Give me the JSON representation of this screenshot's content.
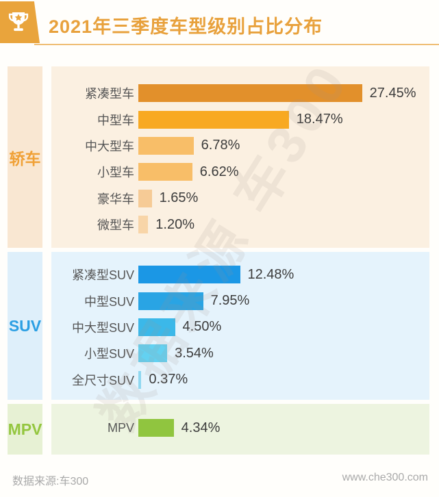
{
  "header": {
    "title": "2021年三季度车型级别占比分布",
    "icon": "trophy-icon",
    "accent_color": "#e8a13c"
  },
  "watermark": "数据来源 车300",
  "footer": {
    "source": "数据来源:车300",
    "website": "www.che300.com"
  },
  "chart_data": {
    "type": "bar",
    "orientation": "horizontal",
    "title": "2021年三季度车型级别占比分布",
    "unit": "%",
    "value_range": [
      0,
      30
    ],
    "grid": false,
    "legend": false,
    "groups": [
      {
        "key": "sedan",
        "name": "轿车",
        "label_color": "#f0a137",
        "strip_bg": "#f9e7d2",
        "panel_bg": "#fbf0e1",
        "categories": [
          "紧凑型车",
          "中型车",
          "中大型车",
          "小型车",
          "豪华车",
          "微型车"
        ],
        "values": [
          27.45,
          18.47,
          6.78,
          6.62,
          1.65,
          1.2
        ],
        "displays": [
          "27.45%",
          "18.47%",
          "6.78%",
          "6.62%",
          "1.65%",
          "1.20%"
        ],
        "bar_colors": [
          "#e2902b",
          "#f8a922",
          "#f8be68",
          "#f8be68",
          "#f6cb96",
          "#f8d5a8"
        ]
      },
      {
        "key": "suv",
        "name": "SUV",
        "label_color": "#2b9fe3",
        "strip_bg": "#deeffa",
        "panel_bg": "#e5f3fc",
        "categories": [
          "紧凑型SUV",
          "中型SUV",
          "中大型SUV",
          "小型SUV",
          "全尺寸SUV"
        ],
        "values": [
          12.48,
          7.95,
          4.5,
          3.54,
          0.37
        ],
        "displays": [
          "12.48%",
          "7.95%",
          "4.50%",
          "3.54%",
          "0.37%"
        ],
        "bar_colors": [
          "#1b97e5",
          "#29a4e4",
          "#3bb8e9",
          "#63d1f1",
          "#8fd8f0"
        ]
      },
      {
        "key": "mpv",
        "name": "MPV",
        "label_color": "#94c63f",
        "strip_bg": "#e7f1d4",
        "panel_bg": "#edf4e0",
        "categories": [
          "MPV"
        ],
        "values": [
          4.34
        ],
        "displays": [
          "4.34%"
        ],
        "bar_colors": [
          "#90c53f"
        ]
      }
    ]
  }
}
